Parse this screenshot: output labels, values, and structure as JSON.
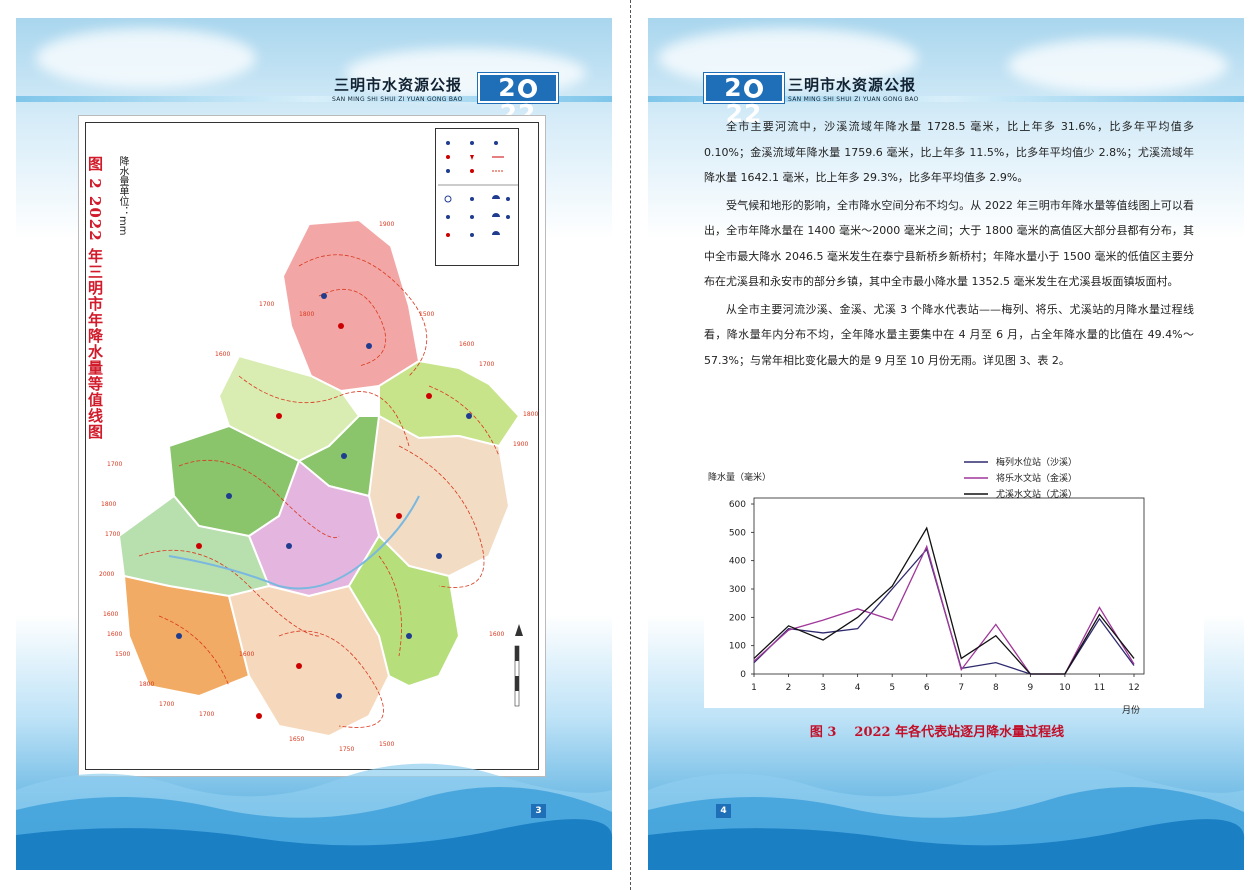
{
  "left_page": {
    "header_title": "三明市水资源公报",
    "header_sub": "SAN MING SHI SHUI ZI YUAN GONG BAO",
    "year": "2022",
    "page_number": "3",
    "map": {
      "title": "图 2  2022 年三明市年降水量等值线图",
      "unit": "降水量单位：mm",
      "contour_labels": [
        "1900",
        "1800",
        "1700",
        "1600",
        "1500",
        "1600",
        "1700",
        "1800",
        "1900",
        "2000",
        "1700",
        "1800",
        "1700",
        "1600",
        "1500",
        "1600",
        "1700",
        "1800",
        "1700",
        "1600",
        "1500",
        "1750",
        "1650",
        "1600"
      ]
    },
    "colors": {
      "zone_pink": "#f2a7a6",
      "zone_yellowgreen": "#c8e48a",
      "zone_green": "#8ac46b",
      "zone_lightgreen": "#d9ecb2",
      "zone_pale": "#f3dcc4",
      "zone_violet": "#e4b6df",
      "zone_orange": "#f2ab64",
      "zone_peach": "#f6d9bd",
      "zone_mint": "#b8dfae",
      "zone_lime": "#b6de7a",
      "contour": "#d9381e"
    }
  },
  "right_page": {
    "header_title": "三明市水资源公报",
    "header_sub": "SAN MING SHI SHUI ZI YUAN GONG BAO",
    "year": "2022",
    "page_number": "4",
    "paragraphs": [
      "全市主要河流中，沙溪流域年降水量 1728.5 毫米，比上年多 31.6%，比多年平均值多 0.10%；金溪流域年降水量 1759.6 毫米，比上年多 11.5%，比多年平均值少 2.8%；尤溪流域年降水量 1642.1 毫米，比上年多 29.3%，比多年平均值多 2.9%。",
      "受气候和地形的影响，全市降水空间分布不均匀。从 2022 年三明市年降水量等值线图上可以看出，全市年降水量在 1400 毫米～2000 毫米之间；大于 1800 毫米的高值区大部分县都有分布，其中全市最大降水 2046.5 毫米发生在泰宁县新桥乡新桥村；年降水量小于 1500 毫米的低值区主要分布在尤溪县和永安市的部分乡镇，其中全市最小降水量 1352.5 毫米发生在尤溪县坂面镇坂面村。",
      "从全市主要河流沙溪、金溪、尤溪 3 个降水代表站——梅列、将乐、尤溪站的月降水量过程线看，降水量年内分布不均，全年降水量主要集中在 4 月至 6 月，占全年降水量的比值在 49.4%～57.3%；与常年相比变化最大的是 9 月至 10 月份无雨。详见图 3、表 2。"
    ],
    "figure_caption_num": "图 3",
    "figure_caption_text": "2022 年各代表站逐月降水量过程线",
    "chart_data": {
      "type": "line",
      "ylabel": "降水量（毫米）",
      "xlabel": "月份",
      "x": [
        1,
        2,
        3,
        4,
        5,
        6,
        7,
        8,
        9,
        10,
        11,
        12
      ],
      "ylim": [
        0,
        600
      ],
      "yticks": [
        0,
        100,
        200,
        300,
        400,
        500,
        600
      ],
      "grid": false,
      "legend_position": "top-right",
      "series": [
        {
          "name": "梅列水位站（沙溪）",
          "color": "#2e2a6e",
          "values": [
            40,
            160,
            145,
            160,
            300,
            440,
            20,
            40,
            0,
            0,
            195,
            30
          ]
        },
        {
          "name": "将乐水文站（金溪）",
          "color": "#a0379a",
          "values": [
            45,
            155,
            190,
            230,
            190,
            450,
            15,
            175,
            0,
            0,
            235,
            35
          ]
        },
        {
          "name": "尤溪水文站（尤溪）",
          "color": "#111111",
          "values": [
            55,
            170,
            120,
            200,
            310,
            515,
            55,
            135,
            0,
            0,
            210,
            55
          ]
        }
      ]
    }
  }
}
